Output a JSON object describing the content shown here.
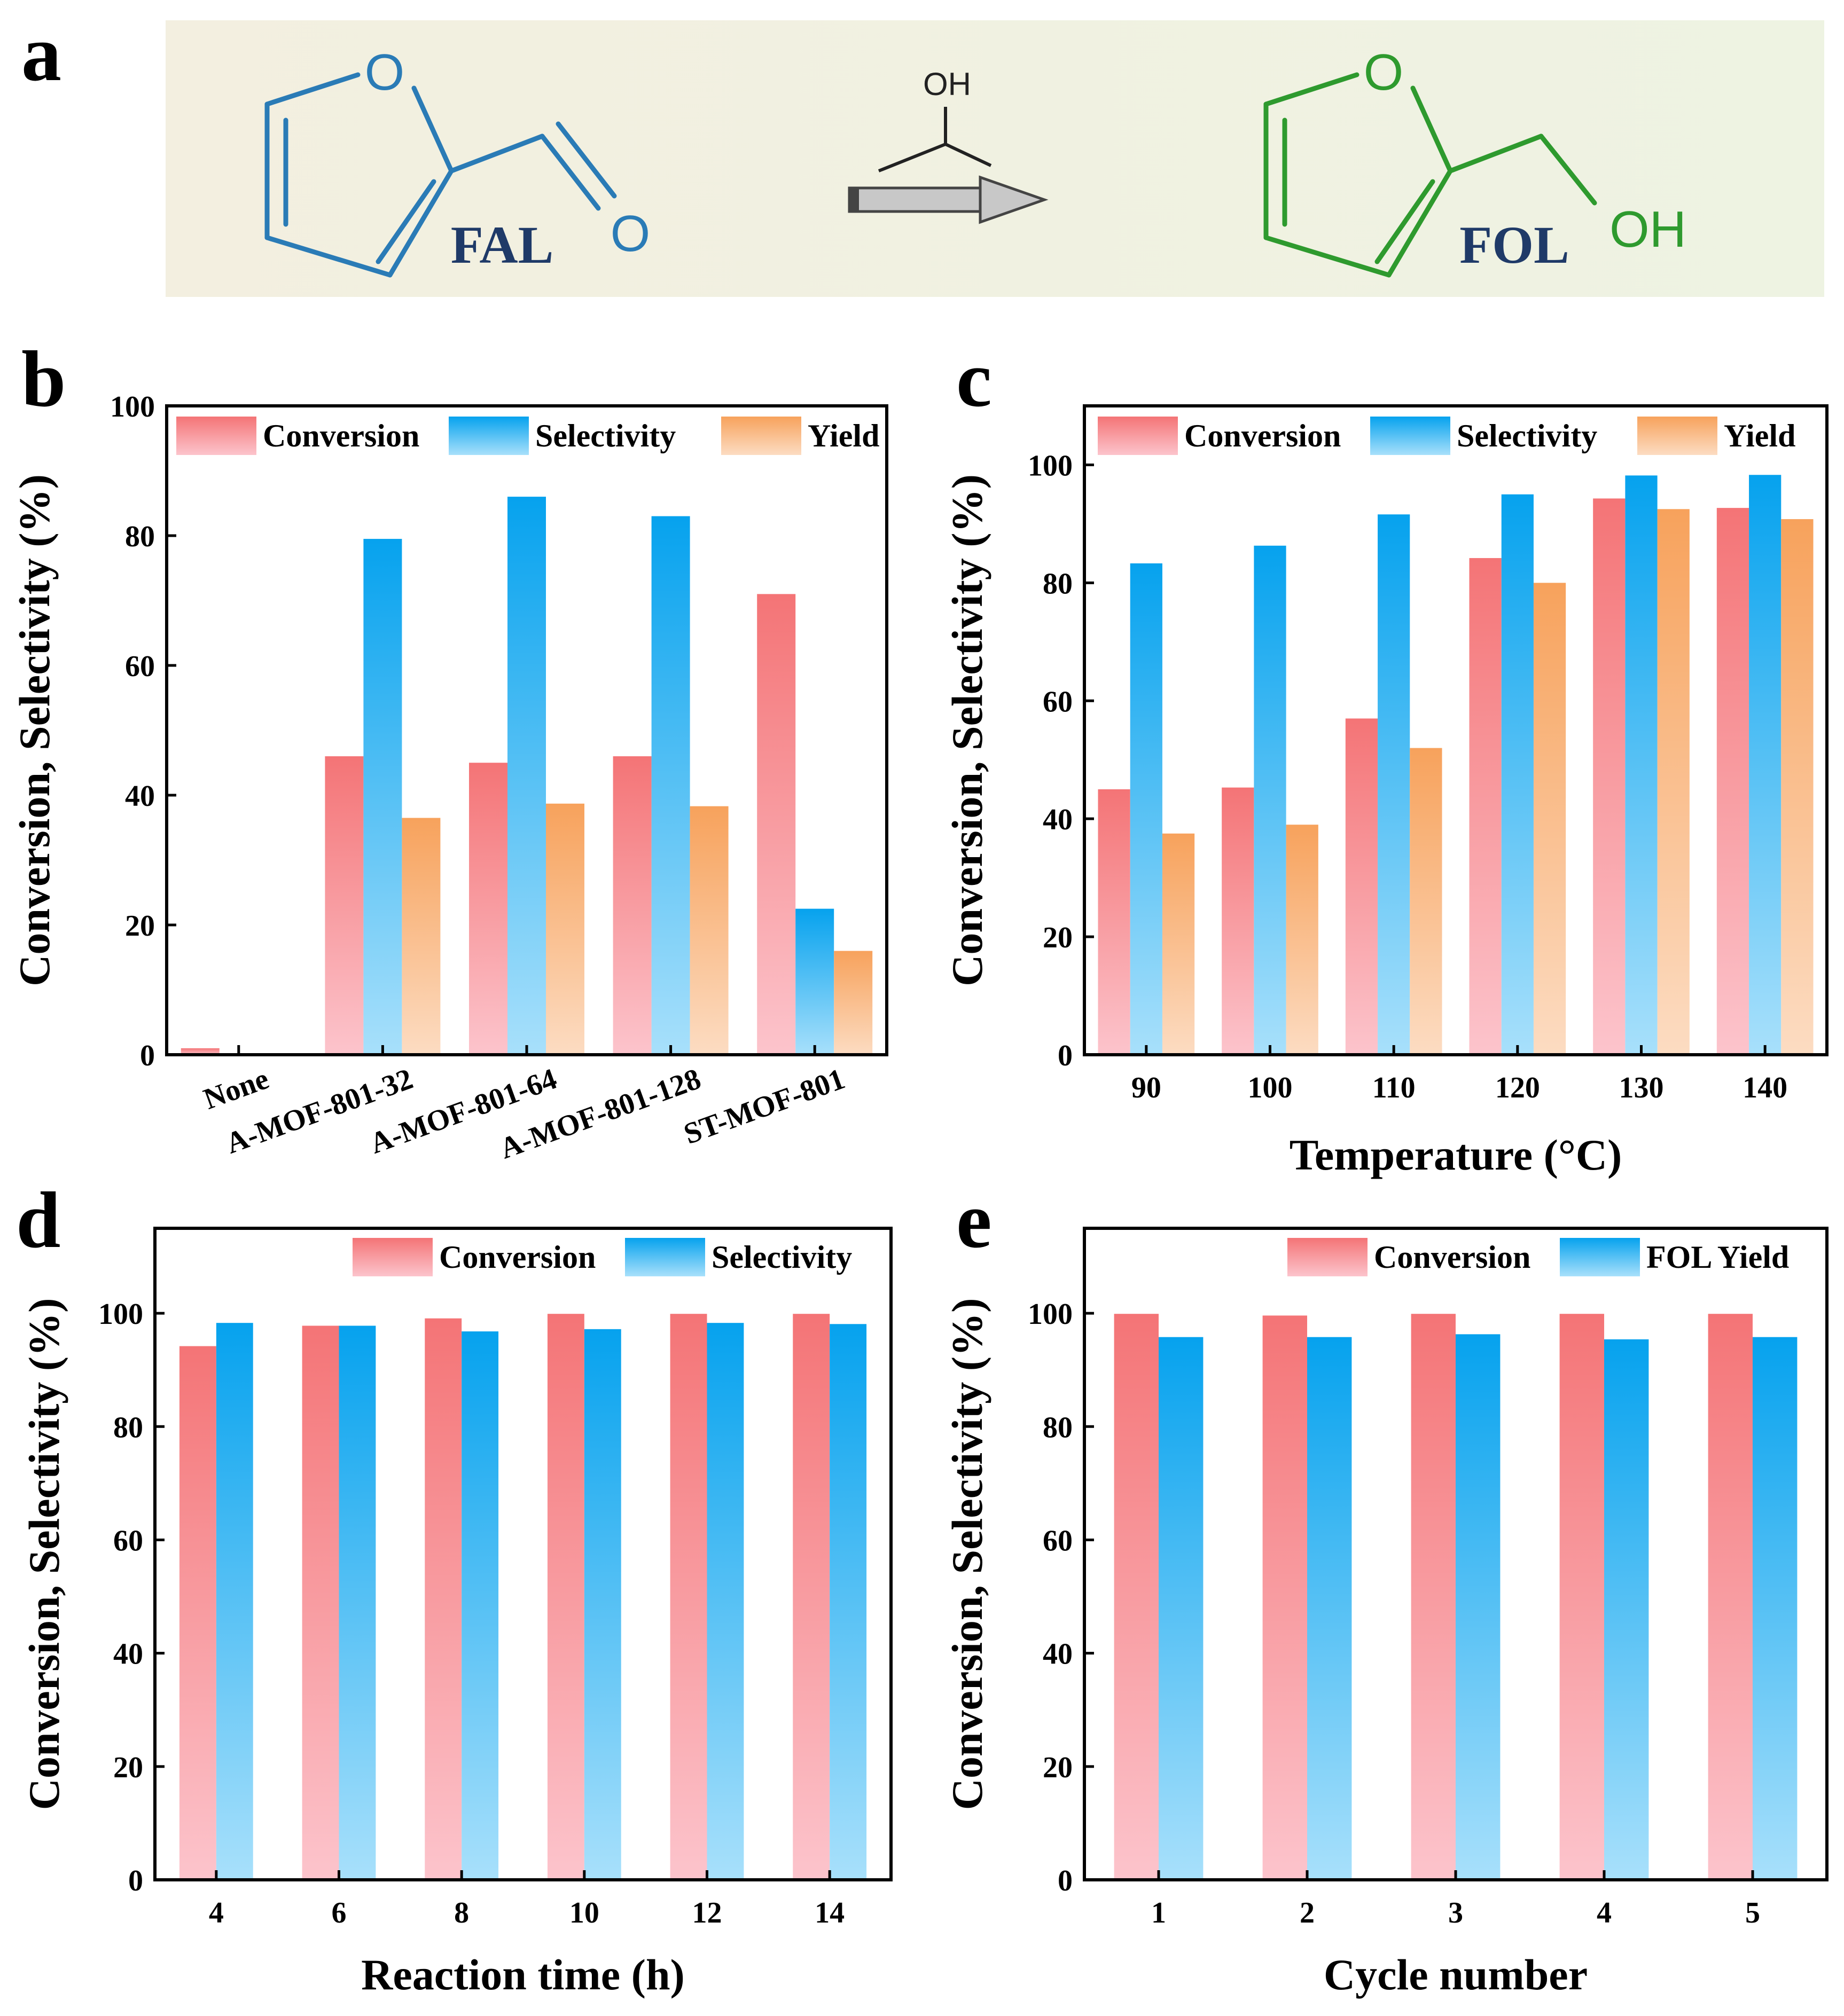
{
  "scheme": {
    "panel": "a",
    "reactant": "FAL",
    "product": "FOL",
    "reagent_group": "OH",
    "oxygen_label": "O",
    "product_group": "OH",
    "colors": {
      "reactant": "#2a7bb6",
      "product": "#2e9a2e",
      "label": "#1f3a68",
      "background_left": "#f3efe0",
      "background_right": "#eef3e2"
    }
  },
  "colors": {
    "conversion": [
      "#f47476",
      "#fcc4cc"
    ],
    "selectivity": [
      "#06a2ee",
      "#a8e0fb"
    ],
    "yield": [
      "#f7a25c",
      "#fcdcc2"
    ]
  },
  "chart_data": [
    {
      "panel": "b",
      "type": "bar",
      "categories": [
        "None",
        "A-MOF-801-32",
        "A-MOF-801-64",
        "A-MOF-801-128",
        "ST-MOF-801"
      ],
      "series": [
        {
          "name": "Conversion",
          "key": "conversion",
          "values": [
            1,
            46,
            45,
            46,
            71
          ]
        },
        {
          "name": "Selectivity",
          "key": "selectivity",
          "values": [
            0,
            79.5,
            86,
            83,
            22.5
          ]
        },
        {
          "name": "Yield",
          "key": "yield",
          "values": [
            0,
            36.5,
            38.7,
            38.3,
            16
          ]
        }
      ],
      "xlabel": "",
      "ylabel": "Conversion, Selectivity (%)",
      "ylim": [
        0,
        100
      ],
      "yticks": [
        0,
        20,
        40,
        60,
        80,
        100
      ],
      "legend_position": "top",
      "rotated_tick_labels": true
    },
    {
      "panel": "c",
      "type": "bar",
      "categories": [
        "90",
        "100",
        "110",
        "120",
        "130",
        "140"
      ],
      "series": [
        {
          "name": "Conversion",
          "key": "conversion",
          "values": [
            45,
            45.3,
            57,
            84.2,
            94.3,
            92.7
          ]
        },
        {
          "name": "Selectivity",
          "key": "selectivity",
          "values": [
            83.3,
            86.3,
            91.6,
            95,
            98.2,
            98.3
          ]
        },
        {
          "name": "Yield",
          "key": "yield",
          "values": [
            37.5,
            39,
            52,
            80,
            92.5,
            90.8
          ]
        }
      ],
      "xlabel": "Temperature (°C)",
      "ylabel": "Conversion, Selectivity (%)",
      "ylim": [
        0,
        110
      ],
      "yticks": [
        0,
        20,
        40,
        60,
        80,
        100
      ],
      "legend_position": "top"
    },
    {
      "panel": "d",
      "type": "bar",
      "categories": [
        "4",
        "6",
        "8",
        "10",
        "12",
        "14"
      ],
      "series": [
        {
          "name": "Conversion",
          "key": "conversion",
          "values": [
            94.2,
            97.8,
            99.1,
            99.9,
            99.9,
            99.9
          ]
        },
        {
          "name": "Selectivity",
          "key": "selectivity",
          "values": [
            98.3,
            97.8,
            96.8,
            97.2,
            98.3,
            98.1
          ]
        }
      ],
      "xlabel": "Reaction time (h)",
      "ylabel": "Conversion, Selectivity (%)",
      "ylim": [
        0,
        115
      ],
      "yticks": [
        0,
        20,
        40,
        60,
        80,
        100
      ],
      "legend_position": "top-right"
    },
    {
      "panel": "e",
      "type": "bar",
      "categories": [
        "1",
        "2",
        "3",
        "4",
        "5"
      ],
      "series": [
        {
          "name": "Conversion",
          "key": "conversion",
          "values": [
            99.9,
            99.6,
            99.9,
            99.9,
            99.9
          ]
        },
        {
          "name": "FOL Yield",
          "key": "selectivity",
          "values": [
            95.8,
            95.8,
            96.3,
            95.4,
            95.8
          ]
        }
      ],
      "xlabel": "Cycle number",
      "ylabel": "Conversion, Selectivity (%)",
      "ylim": [
        0,
        115
      ],
      "yticks": [
        0,
        20,
        40,
        60,
        80,
        100
      ],
      "legend_position": "top-right"
    }
  ]
}
